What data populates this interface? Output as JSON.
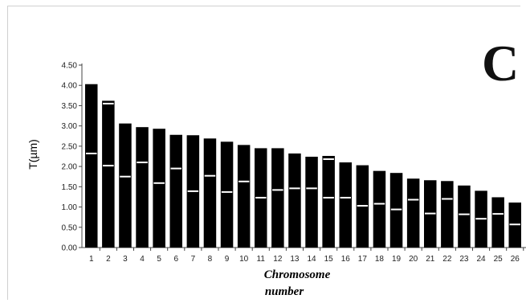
{
  "panel_label": "C",
  "chart_data": {
    "type": "bar",
    "title": "",
    "xlabel": "Chromosome number",
    "xlabel_lines": [
      "Chromosome",
      "number"
    ],
    "ylabel": "T(µm)",
    "ylim": [
      0,
      4.5
    ],
    "ytick_labels": [
      "0.00",
      "0.50",
      "1.00",
      "1.50",
      "2.00",
      "2.50",
      "3.00",
      "3.50",
      "4.00",
      "4.50"
    ],
    "yticks": [
      0,
      0.5,
      1.0,
      1.5,
      2.0,
      2.5,
      3.0,
      3.5,
      4.0,
      4.5
    ],
    "categories": [
      "1",
      "2",
      "3",
      "4",
      "5",
      "6",
      "7",
      "8",
      "9",
      "10",
      "11",
      "12",
      "13",
      "14",
      "15",
      "16",
      "17",
      "18",
      "19",
      "20",
      "21",
      "22",
      "23",
      "24",
      "25",
      "26"
    ],
    "values": [
      4.03,
      3.62,
      3.06,
      2.97,
      2.93,
      2.78,
      2.77,
      2.69,
      2.61,
      2.53,
      2.45,
      2.45,
      2.32,
      2.24,
      2.26,
      2.1,
      2.03,
      1.89,
      1.84,
      1.7,
      1.66,
      1.64,
      1.53,
      1.4,
      1.24,
      1.11
    ],
    "centromere_marks": [
      [
        2.32
      ],
      [
        2.02,
        3.55
      ],
      [
        1.75
      ],
      [
        2.1
      ],
      [
        1.59
      ],
      [
        1.95
      ],
      [
        1.39
      ],
      [
        1.77
      ],
      [
        1.37
      ],
      [
        1.63
      ],
      [
        1.23
      ],
      [
        1.42
      ],
      [
        1.46
      ],
      [
        1.46
      ],
      [
        1.23,
        2.18
      ],
      [
        1.23
      ],
      [
        1.03
      ],
      [
        1.08
      ],
      [
        0.94
      ],
      [
        1.18
      ],
      [
        0.84
      ],
      [
        1.2
      ],
      [
        0.82
      ],
      [
        0.71
      ],
      [
        0.83
      ],
      [
        0.57
      ]
    ],
    "bar_color": "#000000",
    "mark_color": "#ffffff",
    "grid": false,
    "legend": "none"
  }
}
